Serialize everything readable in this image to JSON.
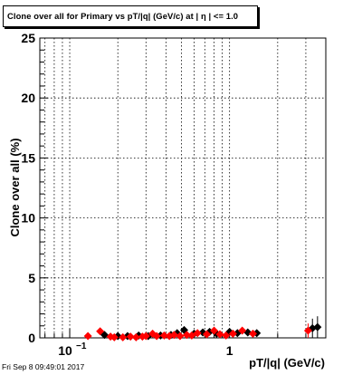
{
  "title": "Clone  over all for Primary vs pT/|q| (GeV/c) at |  η | <= 1.0",
  "footer": "Fri Sep  8 09:49:01 2017",
  "chart_data": {
    "type": "scatter",
    "title": "Clone  over all for Primary vs pT/|q| (GeV/c) at |  η | <= 1.0",
    "xlabel": "pT/|q| (GeV/c)",
    "ylabel": "Clone  over all (%)",
    "x_scale": "log",
    "xlim": [
      0.065,
      4.0
    ],
    "ylim": [
      0,
      25
    ],
    "grid": true,
    "x_tick_labels": [
      {
        "value": 0.1,
        "base": "10",
        "exp": "−1"
      },
      {
        "value": 1,
        "base": "1",
        "exp": ""
      }
    ],
    "y_ticks": [
      0,
      5,
      10,
      15,
      20,
      25
    ],
    "colors": {
      "black_series": "#000000",
      "red_series": "#ff0000"
    },
    "series": [
      {
        "color": "black",
        "marker": "diamond",
        "points": [
          {
            "x": 0.165,
            "y": 0.25,
            "err": 0.05
          },
          {
            "x": 0.2,
            "y": 0.15,
            "err": 0.05
          },
          {
            "x": 0.23,
            "y": 0.15,
            "err": 0.05
          },
          {
            "x": 0.27,
            "y": 0.2,
            "err": 0.06
          },
          {
            "x": 0.31,
            "y": 0.15,
            "err": 0.06
          },
          {
            "x": 0.37,
            "y": 0.2,
            "err": 0.07
          },
          {
            "x": 0.43,
            "y": 0.25,
            "err": 0.08
          },
          {
            "x": 0.47,
            "y": 0.4,
            "err": 0.1
          },
          {
            "x": 0.52,
            "y": 0.65,
            "err": 0.15
          },
          {
            "x": 0.6,
            "y": 0.35,
            "err": 0.1
          },
          {
            "x": 0.68,
            "y": 0.45,
            "err": 0.12
          },
          {
            "x": 0.75,
            "y": 0.5,
            "err": 0.15
          },
          {
            "x": 0.83,
            "y": 0.35,
            "err": 0.12
          },
          {
            "x": 1.0,
            "y": 0.5,
            "err": 0.15
          },
          {
            "x": 1.12,
            "y": 0.4,
            "err": 0.18
          },
          {
            "x": 1.3,
            "y": 0.45,
            "err": 0.2
          },
          {
            "x": 1.48,
            "y": 0.4,
            "err": 0.25
          },
          {
            "x": 3.3,
            "y": 0.8,
            "err": 0.8
          },
          {
            "x": 3.55,
            "y": 0.9,
            "err": 0.9
          }
        ]
      },
      {
        "color": "red",
        "marker": "diamond",
        "points": [
          {
            "x": 0.13,
            "y": 0.15,
            "err": 0.05
          },
          {
            "x": 0.155,
            "y": 0.55,
            "err": 0.1
          },
          {
            "x": 0.18,
            "y": 0.1,
            "err": 0.04
          },
          {
            "x": 0.19,
            "y": 0.05,
            "err": 0.04
          },
          {
            "x": 0.215,
            "y": 0.05,
            "err": 0.04
          },
          {
            "x": 0.24,
            "y": 0.1,
            "err": 0.04
          },
          {
            "x": 0.26,
            "y": 0.05,
            "err": 0.04
          },
          {
            "x": 0.285,
            "y": 0.1,
            "err": 0.05
          },
          {
            "x": 0.3,
            "y": 0.15,
            "err": 0.05
          },
          {
            "x": 0.33,
            "y": 0.35,
            "err": 0.07
          },
          {
            "x": 0.35,
            "y": 0.15,
            "err": 0.06
          },
          {
            "x": 0.39,
            "y": 0.2,
            "err": 0.06
          },
          {
            "x": 0.42,
            "y": 0.15,
            "err": 0.06
          },
          {
            "x": 0.45,
            "y": 0.25,
            "err": 0.08
          },
          {
            "x": 0.49,
            "y": 0.15,
            "err": 0.08
          },
          {
            "x": 0.54,
            "y": 0.25,
            "err": 0.1
          },
          {
            "x": 0.58,
            "y": 0.2,
            "err": 0.1
          },
          {
            "x": 0.63,
            "y": 0.4,
            "err": 0.12
          },
          {
            "x": 0.72,
            "y": 0.3,
            "err": 0.12
          },
          {
            "x": 0.8,
            "y": 0.6,
            "err": 0.15
          },
          {
            "x": 0.87,
            "y": 0.3,
            "err": 0.12
          },
          {
            "x": 0.95,
            "y": 0.2,
            "err": 0.12
          },
          {
            "x": 1.05,
            "y": 0.35,
            "err": 0.15
          },
          {
            "x": 1.2,
            "y": 0.6,
            "err": 0.2
          },
          {
            "x": 1.4,
            "y": 0.35,
            "err": 0.2
          },
          {
            "x": 3.1,
            "y": 0.6,
            "err": 0.6
          }
        ]
      }
    ]
  }
}
